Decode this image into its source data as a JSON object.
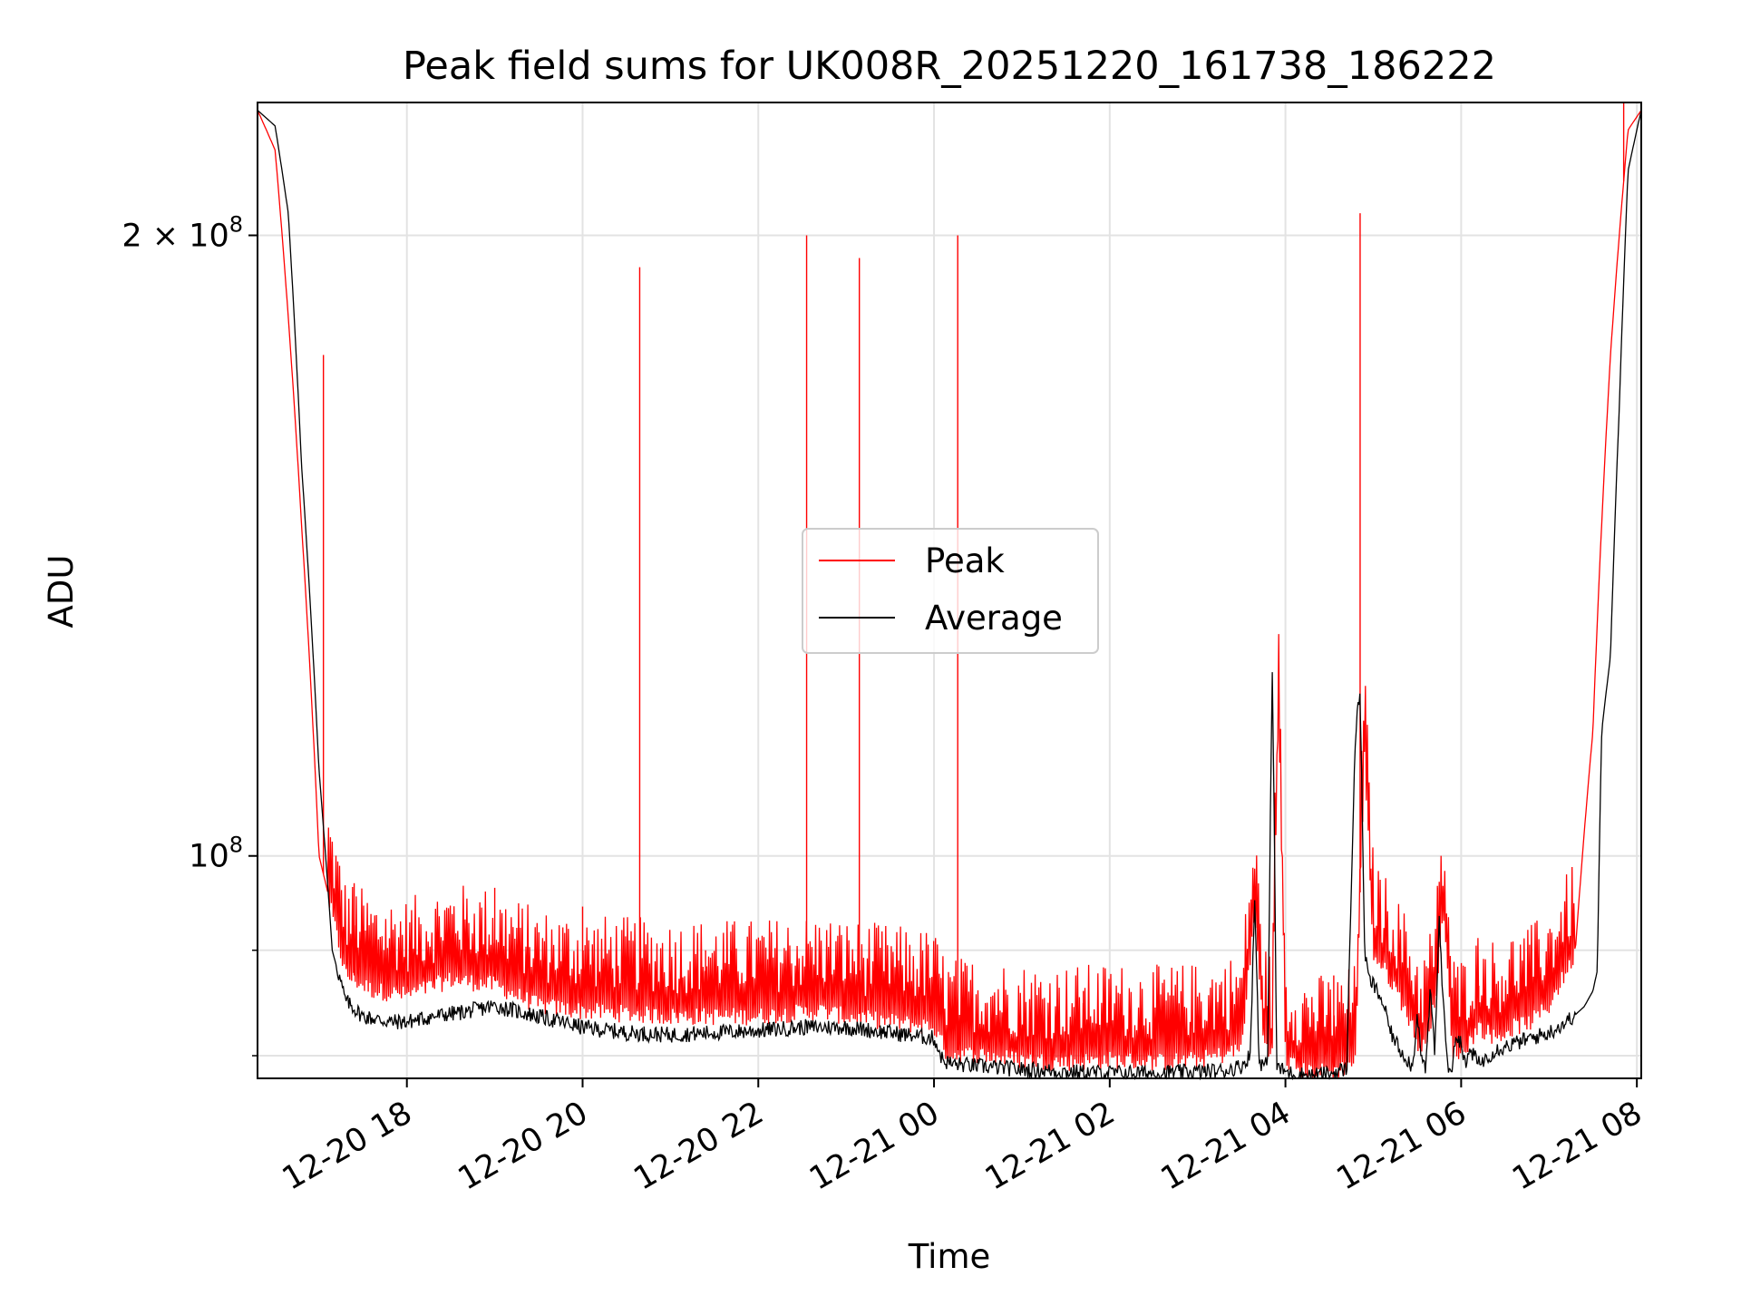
{
  "chart_data": {
    "type": "line",
    "title": "Peak field sums for UK008R_20251220_161738_186222",
    "xlabel": "Time",
    "ylabel": "ADU",
    "yscale": "log",
    "ylim": [
      78000000,
      232000000
    ],
    "xlim_hours": [
      16.3,
      32.05
    ],
    "grid": true,
    "legend_location": "center",
    "x_ticks": [
      {
        "hour": 18,
        "label": "12-20 18"
      },
      {
        "hour": 20,
        "label": "12-20 20"
      },
      {
        "hour": 22,
        "label": "12-20 22"
      },
      {
        "hour": 24,
        "label": "12-21 00"
      },
      {
        "hour": 26,
        "label": "12-21 02"
      },
      {
        "hour": 28,
        "label": "12-21 04"
      },
      {
        "hour": 30,
        "label": "12-21 06"
      },
      {
        "hour": 32,
        "label": "12-21 08"
      }
    ],
    "y_ticks": [
      {
        "value": 100000000,
        "base": "10",
        "exp": "8",
        "label": "10^8"
      },
      {
        "value": 200000000,
        "prefix": "2 × 10",
        "exp": "8",
        "label": "2 × 10^8"
      }
    ],
    "y_minor_ticks": [
      80000000,
      90000000
    ],
    "series": [
      {
        "name": "Peak",
        "color": "#ff0000",
        "baseline_hours": [
          16.3,
          16.5,
          16.8,
          17.0,
          17.3,
          17.6,
          18.0,
          18.5,
          19.0,
          19.5,
          20.0,
          21.0,
          22.0,
          22.7,
          23.0,
          23.5,
          24.0,
          24.15,
          24.5,
          25.0,
          25.5,
          26.0,
          26.5,
          27.0,
          27.3,
          27.5,
          27.65,
          27.75,
          27.85,
          27.92,
          28.0,
          28.2,
          28.4,
          28.6,
          28.8,
          28.9,
          29.0,
          29.2,
          29.4,
          29.55,
          29.7,
          29.8,
          29.9,
          30.0,
          30.2,
          30.4,
          30.6,
          30.8,
          31.0,
          31.3,
          31.5,
          31.7,
          31.9,
          32.05
        ],
        "baseline_values": [
          230000000,
          220000000,
          145000000,
          100000000,
          88000000,
          86500000,
          86000000,
          87500000,
          87000000,
          85000000,
          84500000,
          84000000,
          84000000,
          84500000,
          84000000,
          83500000,
          83000000,
          80500000,
          80500000,
          80000000,
          79800000,
          80000000,
          79800000,
          80000000,
          80500000,
          81000000,
          94000000,
          82000000,
          80500000,
          118000000,
          80000000,
          79000000,
          79000000,
          79000000,
          80000000,
          112000000,
          90000000,
          87500000,
          84000000,
          80500000,
          85000000,
          94000000,
          81000000,
          80500000,
          83000000,
          82000000,
          83000000,
          83500000,
          85000000,
          90000000,
          115000000,
          175000000,
          225000000,
          230000000
        ],
        "spikes": [
          {
            "hour": 17.05,
            "value": 175000000
          },
          {
            "hour": 17.4,
            "value": 97000000
          },
          {
            "hour": 19.0,
            "value": 96500000
          },
          {
            "hour": 20.0,
            "value": 94500000
          },
          {
            "hour": 20.65,
            "value": 193000000
          },
          {
            "hour": 21.4,
            "value": 90000000
          },
          {
            "hour": 21.7,
            "value": 90000000
          },
          {
            "hour": 22.55,
            "value": 200000000
          },
          {
            "hour": 23.15,
            "value": 195000000
          },
          {
            "hour": 24.27,
            "value": 200000000
          },
          {
            "hour": 25.7,
            "value": 86000000
          },
          {
            "hour": 28.55,
            "value": 87500000
          },
          {
            "hour": 28.85,
            "value": 205000000
          },
          {
            "hour": 29.73,
            "value": 96500000
          },
          {
            "hour": 30.2,
            "value": 86500000
          },
          {
            "hour": 31.85,
            "value": 232000000
          }
        ]
      },
      {
        "name": "Average",
        "color": "#000000",
        "hours": [
          16.3,
          16.5,
          16.65,
          16.8,
          17.0,
          17.15,
          17.3,
          17.5,
          17.8,
          18.0,
          18.3,
          18.7,
          19.0,
          19.5,
          20.0,
          20.5,
          21.0,
          21.5,
          22.0,
          22.5,
          23.0,
          23.5,
          24.0,
          24.1,
          24.2,
          24.5,
          25.0,
          25.5,
          26.0,
          26.5,
          27.0,
          27.3,
          27.5,
          27.55,
          27.6,
          27.65,
          27.7,
          27.75,
          27.8,
          27.85,
          27.9,
          27.95,
          28.0,
          28.1,
          28.3,
          28.5,
          28.7,
          28.8,
          28.85,
          28.9,
          28.95,
          29.0,
          29.1,
          29.2,
          29.3,
          29.4,
          29.45,
          29.5,
          29.55,
          29.6,
          29.65,
          29.7,
          29.75,
          29.8,
          29.85,
          29.9,
          29.95,
          30.0,
          30.05,
          30.1,
          30.2,
          30.4,
          30.6,
          30.8,
          31.0,
          31.2,
          31.4,
          31.5,
          31.55,
          31.6,
          31.7,
          31.8,
          31.9,
          32.05
        ],
        "values": [
          230000000,
          226000000,
          205000000,
          155000000,
          110000000,
          90000000,
          85000000,
          83500000,
          83000000,
          83000000,
          83500000,
          84000000,
          84500000,
          83500000,
          82500000,
          82000000,
          81800000,
          82000000,
          82200000,
          82500000,
          82500000,
          82000000,
          81500000,
          79500000,
          79200000,
          79000000,
          78700000,
          78500000,
          78400000,
          78400000,
          78500000,
          78600000,
          79000000,
          79500000,
          80000000,
          95000000,
          79500000,
          79000000,
          79500000,
          123000000,
          79000000,
          78700000,
          78500000,
          78300000,
          78200000,
          78300000,
          78800000,
          115000000,
          120000000,
          90000000,
          87000000,
          86500000,
          85000000,
          82000000,
          80500000,
          79500000,
          78800000,
          84000000,
          79500000,
          78800000,
          86000000,
          80000000,
          93000000,
          84000000,
          79000000,
          78900000,
          82000000,
          81000000,
          78800000,
          80500000,
          79200000,
          80500000,
          81000000,
          81500000,
          82000000,
          83000000,
          84500000,
          86000000,
          88000000,
          115000000,
          125000000,
          165000000,
          215000000,
          230000000
        ]
      }
    ]
  }
}
